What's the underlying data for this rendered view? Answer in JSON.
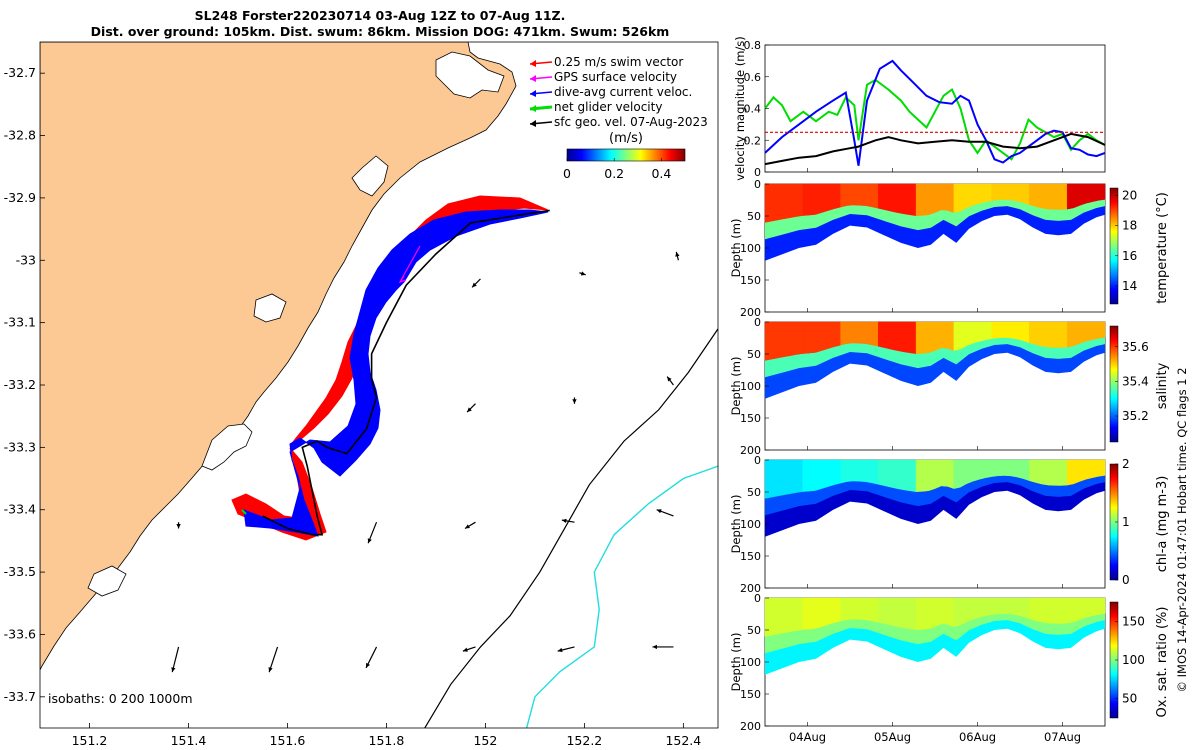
{
  "title": {
    "line1": "SL248 Forster220230714 03-Aug 12Z to 07-Aug 11Z.",
    "line2": "Dist. over ground: 105km. Dist. swum: 86km. Mission DOG: 471km. Swum: 526km"
  },
  "credit": "© IMOS 14-Apr-2024 01:47:01 Hobart time. QC flags 1  2",
  "colors": {
    "land": "#fcc995",
    "glider_track": "#000000",
    "swim_vector": "#ff0000",
    "gps_velocity": "#ff00ff",
    "dive_avg_current": "#0000ff",
    "net_velocity": "#00dd00",
    "geo_velocity": "#000000",
    "isobath_200": "#000000",
    "isobath_1000": "#22dddd"
  },
  "chart_data": [
    {
      "type": "map",
      "xlim": [
        151.1,
        152.47
      ],
      "ylim": [
        -33.75,
        -32.65
      ],
      "x_ticks": [
        "151.2",
        "151.4",
        "151.6",
        "151.8",
        "152",
        "152.2",
        "152.4"
      ],
      "y_ticks": [
        "-32.7",
        "-32.8",
        "-32.9",
        "-33",
        "-33.1",
        "-33.2",
        "-33.3",
        "-33.4",
        "-33.5",
        "-33.6",
        "-33.7"
      ],
      "legend": [
        {
          "key": "swim",
          "label": "0.25 m/s swim vector",
          "color": "#ff0000"
        },
        {
          "key": "gps",
          "label": "GPS surface velocity",
          "color": "#ff00ff"
        },
        {
          "key": "dive",
          "label": "dive-avg current veloc.",
          "color": "#0000ff"
        },
        {
          "key": "net",
          "label": "net glider velocity",
          "color": "#00dd00"
        },
        {
          "key": "geo",
          "label": "sfc geo. vel. 07-Aug-2023",
          "color": "#000000"
        }
      ],
      "colorbar": {
        "label": "(m/s)",
        "ticks": [
          "0",
          "0.2",
          "0.4"
        ],
        "range": [
          0,
          0.5
        ]
      },
      "isobaths_label": "isobaths: 0   200  1000m",
      "track": [
        [
          152.13,
          -32.92
        ],
        [
          152.05,
          -32.93
        ],
        [
          151.97,
          -32.94
        ],
        [
          151.9,
          -32.99
        ],
        [
          151.84,
          -33.04
        ],
        [
          151.8,
          -33.1
        ],
        [
          151.77,
          -33.15
        ],
        [
          151.77,
          -33.19
        ],
        [
          151.78,
          -33.22
        ],
        [
          151.76,
          -33.27
        ],
        [
          151.72,
          -33.31
        ],
        [
          151.68,
          -33.3
        ],
        [
          151.66,
          -33.29
        ],
        [
          151.63,
          -33.3
        ],
        [
          151.64,
          -33.33
        ],
        [
          151.65,
          -33.37
        ],
        [
          151.66,
          -33.41
        ],
        [
          151.67,
          -33.44
        ],
        [
          151.65,
          -33.44
        ],
        [
          151.6,
          -33.43
        ],
        [
          151.55,
          -33.41
        ]
      ],
      "geo_arrows": [
        {
          "lon": 151.79,
          "lat": -33.03,
          "u": -0.03,
          "v": -0.05
        },
        {
          "lon": 151.99,
          "lat": -33.03,
          "u": -0.02,
          "v": -0.02
        },
        {
          "lon": 152.19,
          "lat": -33.02,
          "u": 0.015,
          "v": -0.005
        },
        {
          "lon": 152.39,
          "lat": -33.0,
          "u": -0.005,
          "v": 0.02
        },
        {
          "lon": 151.78,
          "lat": -33.23,
          "u": 0.005,
          "v": -0.02
        },
        {
          "lon": 151.98,
          "lat": -33.23,
          "u": -0.02,
          "v": -0.02
        },
        {
          "lon": 152.18,
          "lat": -33.22,
          "u": 0.0,
          "v": -0.015
        },
        {
          "lon": 152.38,
          "lat": -33.2,
          "u": -0.015,
          "v": 0.02
        },
        {
          "lon": 151.38,
          "lat": -33.42,
          "u": 0.0,
          "v": -0.015
        },
        {
          "lon": 151.58,
          "lat": -33.42,
          "u": 0.0,
          "v": -0.015
        },
        {
          "lon": 151.78,
          "lat": -33.42,
          "u": -0.02,
          "v": -0.05
        },
        {
          "lon": 151.98,
          "lat": -33.42,
          "u": -0.025,
          "v": -0.015
        },
        {
          "lon": 152.18,
          "lat": -33.42,
          "u": -0.03,
          "v": 0.005
        },
        {
          "lon": 152.38,
          "lat": -33.41,
          "u": -0.04,
          "v": 0.015
        },
        {
          "lon": 151.38,
          "lat": -33.62,
          "u": -0.015,
          "v": -0.06
        },
        {
          "lon": 151.58,
          "lat": -33.62,
          "u": -0.02,
          "v": -0.06
        },
        {
          "lon": 151.78,
          "lat": -33.62,
          "u": -0.025,
          "v": -0.05
        },
        {
          "lon": 151.98,
          "lat": -33.62,
          "u": -0.03,
          "v": -0.01
        },
        {
          "lon": 152.18,
          "lat": -33.62,
          "u": -0.04,
          "v": -0.01
        },
        {
          "lon": 152.38,
          "lat": -33.62,
          "u": -0.05,
          "v": 0.0
        }
      ],
      "isobath_200": [
        [
          151.87,
          -33.76
        ],
        [
          151.93,
          -33.68
        ],
        [
          151.99,
          -33.62
        ],
        [
          152.05,
          -33.57
        ],
        [
          152.11,
          -33.5
        ],
        [
          152.16,
          -33.43
        ],
        [
          152.21,
          -33.36
        ],
        [
          152.28,
          -33.29
        ],
        [
          152.35,
          -33.24
        ],
        [
          152.41,
          -33.18
        ],
        [
          152.47,
          -33.11
        ]
      ],
      "isobath_1000": [
        [
          152.08,
          -33.76
        ],
        [
          152.1,
          -33.7
        ],
        [
          152.15,
          -33.66
        ],
        [
          152.22,
          -33.62
        ],
        [
          152.23,
          -33.56
        ],
        [
          152.22,
          -33.5
        ],
        [
          152.26,
          -33.44
        ],
        [
          152.33,
          -33.39
        ],
        [
          152.4,
          -33.35
        ],
        [
          152.47,
          -33.33
        ]
      ]
    },
    {
      "type": "line",
      "ylabel": "velocity magnitude (m/s)",
      "ylim": [
        0,
        0.8
      ],
      "y_ticks": [
        "0",
        "0.2",
        "0.4",
        "0.6",
        "0.8"
      ],
      "x_unit": "days after 03-Aug 12Z",
      "xlim": [
        0,
        4
      ],
      "series": [
        {
          "color": "#00dd00",
          "x": [
            0,
            0.1,
            0.2,
            0.3,
            0.45,
            0.6,
            0.75,
            0.85,
            0.95,
            1.05,
            1.1,
            1.2,
            1.3,
            1.45,
            1.6,
            1.7,
            1.8,
            1.9,
            2.0,
            2.1,
            2.2,
            2.3,
            2.4,
            2.5,
            2.6,
            2.8,
            2.9,
            3.0,
            3.1,
            3.2,
            3.3,
            3.4,
            3.5,
            3.6,
            3.7,
            3.8,
            3.9,
            4.0
          ],
          "y": [
            0.4,
            0.47,
            0.42,
            0.32,
            0.38,
            0.32,
            0.38,
            0.36,
            0.47,
            0.42,
            0.2,
            0.55,
            0.58,
            0.52,
            0.45,
            0.38,
            0.33,
            0.28,
            0.38,
            0.48,
            0.52,
            0.4,
            0.2,
            0.12,
            0.2,
            0.12,
            0.08,
            0.18,
            0.33,
            0.28,
            0.25,
            0.22,
            0.24,
            0.14,
            0.2,
            0.24,
            0.2,
            0.17
          ]
        },
        {
          "color": "#0000ff",
          "x": [
            0,
            0.2,
            0.4,
            0.6,
            0.8,
            0.95,
            1.05,
            1.1,
            1.2,
            1.35,
            1.5,
            1.6,
            1.75,
            1.9,
            2.05,
            2.2,
            2.3,
            2.4,
            2.5,
            2.6,
            2.7,
            2.8,
            2.9,
            3.0,
            3.1,
            3.2,
            3.3,
            3.4,
            3.5,
            3.6,
            3.7,
            3.8,
            3.9,
            4.0
          ],
          "y": [
            0.12,
            0.22,
            0.3,
            0.38,
            0.45,
            0.5,
            0.2,
            0.04,
            0.45,
            0.65,
            0.7,
            0.64,
            0.56,
            0.48,
            0.44,
            0.43,
            0.48,
            0.45,
            0.3,
            0.2,
            0.08,
            0.06,
            0.1,
            0.12,
            0.16,
            0.2,
            0.24,
            0.26,
            0.25,
            0.15,
            0.14,
            0.11,
            0.1,
            0.12
          ]
        },
        {
          "color": "#000000",
          "x": [
            0,
            0.2,
            0.4,
            0.6,
            0.8,
            1.0,
            1.1,
            1.2,
            1.3,
            1.45,
            1.6,
            1.8,
            2.0,
            2.2,
            2.4,
            2.6,
            2.8,
            3.0,
            3.2,
            3.4,
            3.6,
            3.8,
            4.0
          ],
          "y": [
            0.05,
            0.07,
            0.09,
            0.1,
            0.13,
            0.15,
            0.16,
            0.18,
            0.2,
            0.22,
            0.2,
            0.18,
            0.19,
            0.2,
            0.19,
            0.19,
            0.16,
            0.15,
            0.16,
            0.2,
            0.24,
            0.22,
            0.17
          ]
        },
        {
          "color": "#dd0000",
          "x": [
            0,
            4
          ],
          "y": [
            0.25,
            0.25
          ]
        }
      ]
    },
    {
      "type": "heatmap",
      "ylabel": "Depth (m)",
      "colorbar_label": "temperature (°C)",
      "ylim": [
        0,
        200
      ],
      "y_ticks": [
        "0",
        "50",
        "100",
        "150",
        "200"
      ],
      "colorbar_ticks": [
        "14",
        "16",
        "18",
        "20"
      ],
      "clim": [
        12.8,
        20.5
      ],
      "surface_layer": [
        19.2,
        19.3,
        19.0,
        19.4,
        18.4,
        17.9,
        18.0,
        18.2,
        19.8
      ]
    },
    {
      "type": "heatmap",
      "ylabel": "Depth (m)",
      "colorbar_label": "salinity",
      "ylim": [
        0,
        200
      ],
      "y_ticks": [
        "0",
        "50",
        "100",
        "150",
        "200"
      ],
      "colorbar_ticks": [
        "35.2",
        "35.4",
        "35.6"
      ],
      "clim": [
        35.05,
        35.72
      ],
      "surface_layer": [
        35.6,
        35.6,
        35.55,
        35.62,
        35.52,
        35.45,
        35.48,
        35.5,
        35.52
      ]
    },
    {
      "type": "heatmap",
      "ylabel": "Depth (m)",
      "colorbar_label": "chl-a (mg m-3)",
      "ylim": [
        0,
        200
      ],
      "y_ticks": [
        "0",
        "50",
        "100",
        "150",
        "200"
      ],
      "colorbar_ticks": [
        "0",
        "1",
        "2"
      ],
      "clim": [
        0,
        2
      ],
      "surface_layer": [
        0.7,
        0.75,
        0.8,
        0.85,
        1.1,
        1.0,
        1.0,
        1.1,
        1.3
      ]
    },
    {
      "type": "heatmap",
      "ylabel": "Depth (m)",
      "colorbar_label": "Ox. sat. ratio (%)",
      "ylim": [
        0,
        200
      ],
      "y_ticks": [
        "0",
        "50",
        "100",
        "150",
        "200"
      ],
      "colorbar_ticks": [
        "50",
        "100",
        "150"
      ],
      "clim": [
        25,
        175
      ],
      "surface_layer": [
        112,
        115,
        112,
        110,
        112,
        110,
        110,
        112,
        112
      ]
    }
  ],
  "time_ticks": [
    "04Aug",
    "05Aug",
    "06Aug",
    "07Aug"
  ]
}
